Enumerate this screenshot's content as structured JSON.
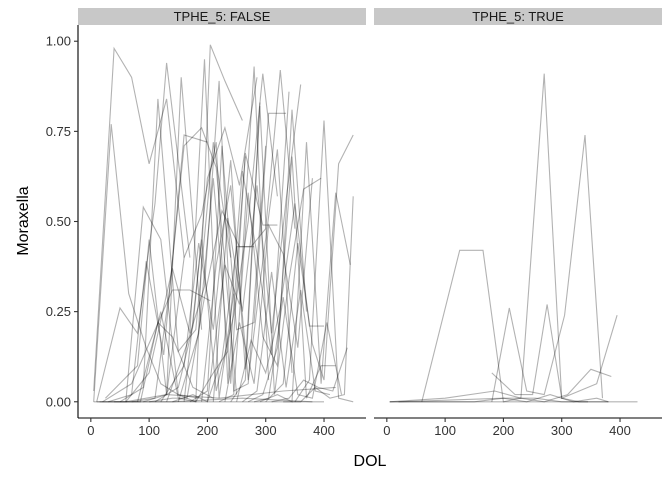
{
  "chart_data": {
    "type": "line",
    "xlabel": "DOL",
    "ylabel": "Moraxella",
    "xlim": [
      -22,
      472
    ],
    "ylim": [
      -0.045,
      1.045
    ],
    "x_ticks": [
      0,
      100,
      200,
      300,
      400
    ],
    "y_ticks": [
      0.0,
      0.25,
      0.5,
      0.75,
      1.0
    ],
    "x_tick_labels": [
      "0",
      "100",
      "200",
      "300",
      "400"
    ],
    "y_tick_labels": [
      "0.00",
      "0.25",
      "0.50",
      "0.75",
      "1.00"
    ],
    "grid": false,
    "legend": "none",
    "line_color": "#000000",
    "line_opacity": 0.3,
    "panels": [
      {
        "strip": "TPHE_5: FALSE",
        "series": [
          {
            "x": [
              5,
              40,
              70,
              100,
              130,
              160
            ],
            "y": [
              0.03,
              0.98,
              0.9,
              0.66,
              0.84,
              0.4
            ]
          },
          {
            "x": [
              5,
              35,
              65,
              95,
              120,
              150,
              180
            ],
            "y": [
              0.0,
              0.77,
              0.3,
              0.15,
              0.05,
              0.02,
              0.0
            ]
          },
          {
            "x": [
              10,
              50,
              80,
              110,
              130,
              170
            ],
            "y": [
              0.0,
              0.26,
              0.19,
              0.55,
              0.94,
              0.4
            ]
          },
          {
            "x": [
              15,
              60,
              90,
              120,
              150,
              185
            ],
            "y": [
              0.0,
              0.0,
              0.54,
              0.45,
              0.02,
              0.01
            ]
          },
          {
            "x": [
              20,
              70,
              105,
              140,
              170,
              205
            ],
            "y": [
              0.0,
              0.05,
              0.18,
              0.31,
              0.31,
              0.28
            ]
          },
          {
            "x": [
              25,
              80,
              100,
              130,
              155,
              190
            ],
            "y": [
              0.01,
              0.1,
              0.45,
              0.02,
              0.9,
              0.2
            ]
          },
          {
            "x": [
              30,
              70,
              95,
              125,
              160,
              200
            ],
            "y": [
              0.0,
              0.02,
              0.39,
              0.13,
              0.74,
              0.72
            ]
          },
          {
            "x": [
              40,
              85,
              115,
              140,
              175,
              210
            ],
            "y": [
              0.0,
              0.0,
              0.22,
              0.18,
              0.04,
              0.01
            ]
          },
          {
            "x": [
              50,
              90,
              115,
              150,
              180,
              210,
              240
            ],
            "y": [
              0.0,
              0.04,
              0.84,
              0.14,
              0.2,
              0.72,
              0.4
            ]
          },
          {
            "x": [
              60,
              100,
              140,
              170,
              195,
              220,
              245
            ],
            "y": [
              0.0,
              0.08,
              0.37,
              0.19,
              0.95,
              0.01,
              0.3
            ]
          },
          {
            "x": [
              70,
              110,
              135,
              160,
              190,
              215,
              250
            ],
            "y": [
              0.0,
              0.01,
              0.31,
              0.71,
              0.76,
              0.65,
              0.02
            ]
          },
          {
            "x": [
              80,
              120,
              150,
              180,
              205,
              230,
              260
            ],
            "y": [
              0.0,
              0.25,
              0.01,
              0.0,
              0.99,
              0.89,
              0.78
            ]
          },
          {
            "x": [
              90,
              130,
              160,
              190,
              215,
              235,
              265
            ],
            "y": [
              0.0,
              0.02,
              0.4,
              0.52,
              0.72,
              0.05,
              0.68
            ]
          },
          {
            "x": [
              100,
              140,
              165,
              195,
              225,
              255,
              280
            ],
            "y": [
              0.0,
              0.01,
              0.01,
              0.29,
              0.53,
              0.43,
              0.43
            ]
          },
          {
            "x": [
              110,
              150,
              175,
              200,
              230,
              255,
              285
            ],
            "y": [
              0.0,
              0.04,
              0.21,
              0.62,
              0.76,
              0.6,
              0.9
            ]
          },
          {
            "x": [
              120,
              160,
              185,
              210,
              240,
              265,
              290
            ],
            "y": [
              0.0,
              0.1,
              0.44,
              0.2,
              0.67,
              0.09,
              0.83
            ]
          },
          {
            "x": [
              130,
              165,
              195,
              220,
              245,
              270,
              300
            ],
            "y": [
              0.0,
              0.16,
              0.32,
              0.89,
              0.03,
              0.05,
              0.71
            ]
          },
          {
            "x": [
              140,
              175,
              200,
              230,
              255,
              280,
              305
            ],
            "y": [
              0.0,
              0.02,
              0.0,
              0.38,
              0.27,
              0.93,
              0.06
            ]
          },
          {
            "x": [
              150,
              185,
              210,
              240,
              265,
              295,
              320
            ],
            "y": [
              0.0,
              0.19,
              0.62,
              0.05,
              0.69,
              0.49,
              0.49
            ]
          },
          {
            "x": [
              160,
              190,
              215,
              245,
              270,
              295,
              320
            ],
            "y": [
              0.0,
              0.45,
              0.03,
              0.24,
              0.5,
              0.91,
              0.57
            ]
          },
          {
            "x": [
              170,
              200,
              225,
              250,
              280,
              305,
              335
            ],
            "y": [
              0.0,
              0.03,
              0.71,
              0.2,
              0.22,
              0.8,
              0.8
            ]
          },
          {
            "x": [
              180,
              210,
              235,
              260,
              285,
              310,
              340
            ],
            "y": [
              0.0,
              0.08,
              0.14,
              0.64,
              0.41,
              0.13,
              0.86
            ]
          },
          {
            "x": [
              190,
              215,
              240,
              270,
              295,
              320,
              345
            ],
            "y": [
              0.0,
              0.38,
              0.6,
              0.06,
              0.39,
              0.7,
              0.08
            ]
          },
          {
            "x": [
              200,
              225,
              250,
              275,
              300,
              325,
              350
            ],
            "y": [
              0.0,
              0.12,
              0.43,
              0.43,
              0.48,
              0.92,
              0.48
            ]
          },
          {
            "x": [
              210,
              235,
              260,
              285,
              310,
              335,
              360
            ],
            "y": [
              0.0,
              0.51,
              0.25,
              0.6,
              0.19,
              0.56,
              0.88
            ]
          },
          {
            "x": [
              220,
              245,
              270,
              295,
              320,
              345,
              370
            ],
            "y": [
              0.0,
              0.02,
              0.58,
              0.18,
              0.1,
              0.81,
              0.25
            ]
          },
          {
            "x": [
              230,
              255,
              280,
              305,
              330,
              355,
              380
            ],
            "y": [
              0.0,
              0.22,
              0.05,
              0.49,
              0.41,
              0.15,
              0.62
            ]
          },
          {
            "x": [
              240,
              265,
              290,
              315,
              340,
              365,
              395
            ],
            "y": [
              0.0,
              0.06,
              0.82,
              0.02,
              0.34,
              0.59,
              0.62
            ]
          },
          {
            "x": [
              250,
              275,
              300,
              325,
              350,
              375,
              400
            ],
            "y": [
              0.0,
              0.17,
              0.08,
              0.26,
              0.55,
              0.21,
              0.21
            ]
          },
          {
            "x": [
              260,
              285,
              310,
              335,
              360,
              385,
              410
            ],
            "y": [
              0.0,
              0.03,
              0.36,
              0.04,
              0.31,
              0.03,
              0.02
            ]
          },
          {
            "x": [
              270,
              295,
              320,
              345,
              370,
              395,
              420
            ],
            "y": [
              0.0,
              0.02,
              0.15,
              0.68,
              0.01,
              0.1,
              0.1
            ]
          },
          {
            "x": [
              280,
              305,
              330,
              355,
              380,
              405,
              430
            ],
            "y": [
              0.0,
              0.01,
              0.29,
              0.02,
              0.01,
              0.22,
              0.02
            ]
          },
          {
            "x": [
              290,
              320,
              345,
              370,
              395,
              420,
              445
            ],
            "y": [
              0.0,
              0.02,
              0.0,
              0.72,
              0.05,
              0.58,
              0.38
            ]
          },
          {
            "x": [
              300,
              330,
              355,
              380,
              400,
              425,
              450
            ],
            "y": [
              0.0,
              0.05,
              0.44,
              0.16,
              0.06,
              0.66,
              0.74
            ]
          },
          {
            "x": [
              310,
              340,
              365,
              390,
              415,
              440
            ],
            "y": [
              0.0,
              0.01,
              0.06,
              0.04,
              0.03,
              0.15
            ]
          },
          {
            "x": [
              330,
              360,
              385,
              410,
              435,
              450
            ],
            "y": [
              0.0,
              0.0,
              0.04,
              0.01,
              0.02,
              0.57
            ]
          },
          {
            "x": [
              350,
              375,
              400,
              425,
              450
            ],
            "y": [
              0.0,
              0.06,
              0.78,
              0.01,
              0.0
            ]
          },
          {
            "x": [
              5,
              100,
              200,
              300,
              400
            ],
            "y": [
              0.0,
              0.0,
              0.0,
              0.0,
              0.0
            ]
          },
          {
            "x": [
              10,
              140,
              260,
              380
            ],
            "y": [
              0.0,
              0.0,
              0.01,
              0.0
            ]
          },
          {
            "x": [
              60,
              130,
              220,
              330,
              420
            ],
            "y": [
              0.0,
              0.02,
              0.01,
              0.03,
              0.04
            ]
          }
        ]
      },
      {
        "strip": "TPHE_5: TRUE",
        "series": [
          {
            "x": [
              60,
              125,
              165,
              200,
              230,
              270,
              300,
              330,
              350,
              380
            ],
            "y": [
              0.0,
              0.42,
              0.42,
              0.0,
              0.01,
              0.91,
              0.01,
              0.0,
              0.0,
              0.0
            ]
          },
          {
            "x": [
              180,
              210,
              240,
              270,
              305,
              340,
              370
            ],
            "y": [
              0.0,
              0.26,
              0.03,
              0.02,
              0.24,
              0.74,
              0.01
            ]
          },
          {
            "x": [
              180,
              220,
              250,
              275,
              300,
              330,
              360,
              395
            ],
            "y": [
              0.08,
              0.02,
              0.02,
              0.27,
              0.01,
              0.03,
              0.05,
              0.24
            ]
          },
          {
            "x": [
              5,
              100,
              185,
              230,
              270,
              310,
              350,
              385
            ],
            "y": [
              0.0,
              0.01,
              0.03,
              0.01,
              0.0,
              0.02,
              0.09,
              0.07
            ]
          },
          {
            "x": [
              5,
              150,
              200,
              240,
              280,
              320,
              360,
              380
            ],
            "y": [
              0.0,
              0.0,
              0.01,
              0.0,
              0.02,
              0.0,
              0.01,
              0.0
            ]
          },
          {
            "x": [
              20,
              200,
              255,
              300,
              345
            ],
            "y": [
              0.0,
              0.01,
              0.01,
              0.0,
              0.0
            ]
          },
          {
            "x": [
              5,
              150,
              300,
              430
            ],
            "y": [
              0.0,
              0.0,
              0.0,
              0.0
            ]
          }
        ]
      }
    ]
  }
}
